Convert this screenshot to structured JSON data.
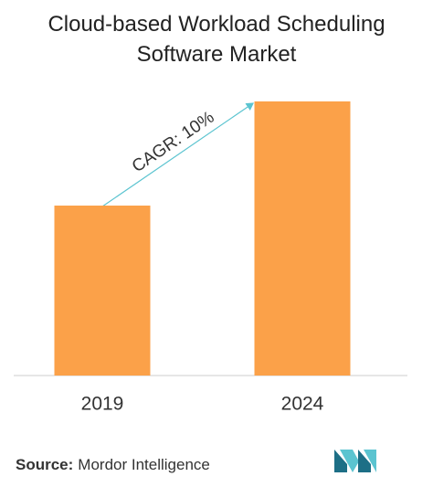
{
  "chart_data": {
    "type": "bar",
    "title": "Cloud-based Workload Scheduling Software Market",
    "categories": [
      "2019",
      "2024"
    ],
    "values": [
      62,
      100
    ],
    "color": "#fba149",
    "annotation": "CAGR: 10%",
    "source_label": "Source:",
    "source_text": "Mordor Intelligence"
  }
}
